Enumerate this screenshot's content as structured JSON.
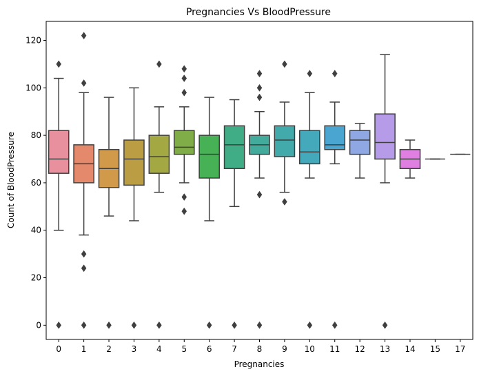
{
  "chart_data": {
    "type": "box",
    "title": "Pregnancies Vs BloodPressure",
    "xlabel": "Pregnancies",
    "ylabel": "Count of BloodPressure",
    "ylim": [
      -6,
      128
    ],
    "yticks": [
      0,
      20,
      40,
      60,
      80,
      100,
      120
    ],
    "grid": false,
    "categories": [
      "0",
      "1",
      "2",
      "3",
      "4",
      "5",
      "6",
      "7",
      "8",
      "9",
      "10",
      "11",
      "12",
      "13",
      "14",
      "15",
      "17"
    ],
    "boxes": [
      {
        "category": "0",
        "min": 40,
        "q1": 64,
        "median": 70,
        "q3": 82,
        "max": 104,
        "outliers": [
          110,
          0
        ],
        "color": "#e8909d"
      },
      {
        "category": "1",
        "min": 38,
        "q1": 60,
        "median": 68,
        "q3": 76,
        "max": 98,
        "outliers": [
          122,
          102,
          30,
          24,
          0
        ],
        "color": "#e4896b"
      },
      {
        "category": "2",
        "min": 46,
        "q1": 58,
        "median": 66,
        "q3": 74,
        "max": 96,
        "outliers": [
          0
        ],
        "color": "#d19a4b"
      },
      {
        "category": "3",
        "min": 44,
        "q1": 59,
        "median": 70,
        "q3": 78,
        "max": 100,
        "outliers": [
          0
        ],
        "color": "#bb9e43"
      },
      {
        "category": "4",
        "min": 56,
        "q1": 64,
        "median": 71,
        "q3": 80,
        "max": 92,
        "outliers": [
          110,
          0
        ],
        "color": "#a3a843"
      },
      {
        "category": "5",
        "min": 60,
        "q1": 72,
        "median": 75,
        "q3": 82,
        "max": 92,
        "outliers": [
          108,
          104,
          98,
          54,
          48
        ],
        "color": "#80ad47"
      },
      {
        "category": "6",
        "min": 44,
        "q1": 62,
        "median": 72,
        "q3": 80,
        "max": 96,
        "outliers": [
          0
        ],
        "color": "#46b155"
      },
      {
        "category": "7",
        "min": 50,
        "q1": 66,
        "median": 76,
        "q3": 84,
        "max": 95,
        "outliers": [
          0
        ],
        "color": "#40ad86"
      },
      {
        "category": "8",
        "min": 62,
        "q1": 72,
        "median": 76,
        "q3": 80,
        "max": 90,
        "outliers": [
          106,
          100,
          96,
          55,
          0
        ],
        "color": "#42ab9c"
      },
      {
        "category": "9",
        "min": 56,
        "q1": 71,
        "median": 78,
        "q3": 84,
        "max": 94,
        "outliers": [
          110,
          52
        ],
        "color": "#42aaab"
      },
      {
        "category": "10",
        "min": 62,
        "q1": 68,
        "median": 73,
        "q3": 82,
        "max": 98,
        "outliers": [
          106,
          0
        ],
        "color": "#44a9bb"
      },
      {
        "category": "11",
        "min": 68,
        "q1": 74,
        "median": 76,
        "q3": 84,
        "max": 94,
        "outliers": [
          106,
          0
        ],
        "color": "#4aa6d1"
      },
      {
        "category": "12",
        "min": 62,
        "q1": 72,
        "median": 78,
        "q3": 82,
        "max": 85,
        "outliers": [],
        "color": "#8fa8e4"
      },
      {
        "category": "13",
        "min": 60,
        "q1": 70,
        "median": 77,
        "q3": 89,
        "max": 114,
        "outliers": [
          0
        ],
        "color": "#b69be8"
      },
      {
        "category": "14",
        "min": 62,
        "q1": 66,
        "median": 70,
        "q3": 74,
        "max": 78,
        "outliers": [],
        "color": "#de7fe1"
      },
      {
        "category": "15",
        "min": 70,
        "q1": 70,
        "median": 70,
        "q3": 70,
        "max": 70,
        "outliers": [],
        "color": "#e286c9"
      },
      {
        "category": "17",
        "min": 72,
        "q1": 72,
        "median": 72,
        "q3": 72,
        "max": 72,
        "outliers": [],
        "color": "#e98bb0"
      }
    ]
  }
}
